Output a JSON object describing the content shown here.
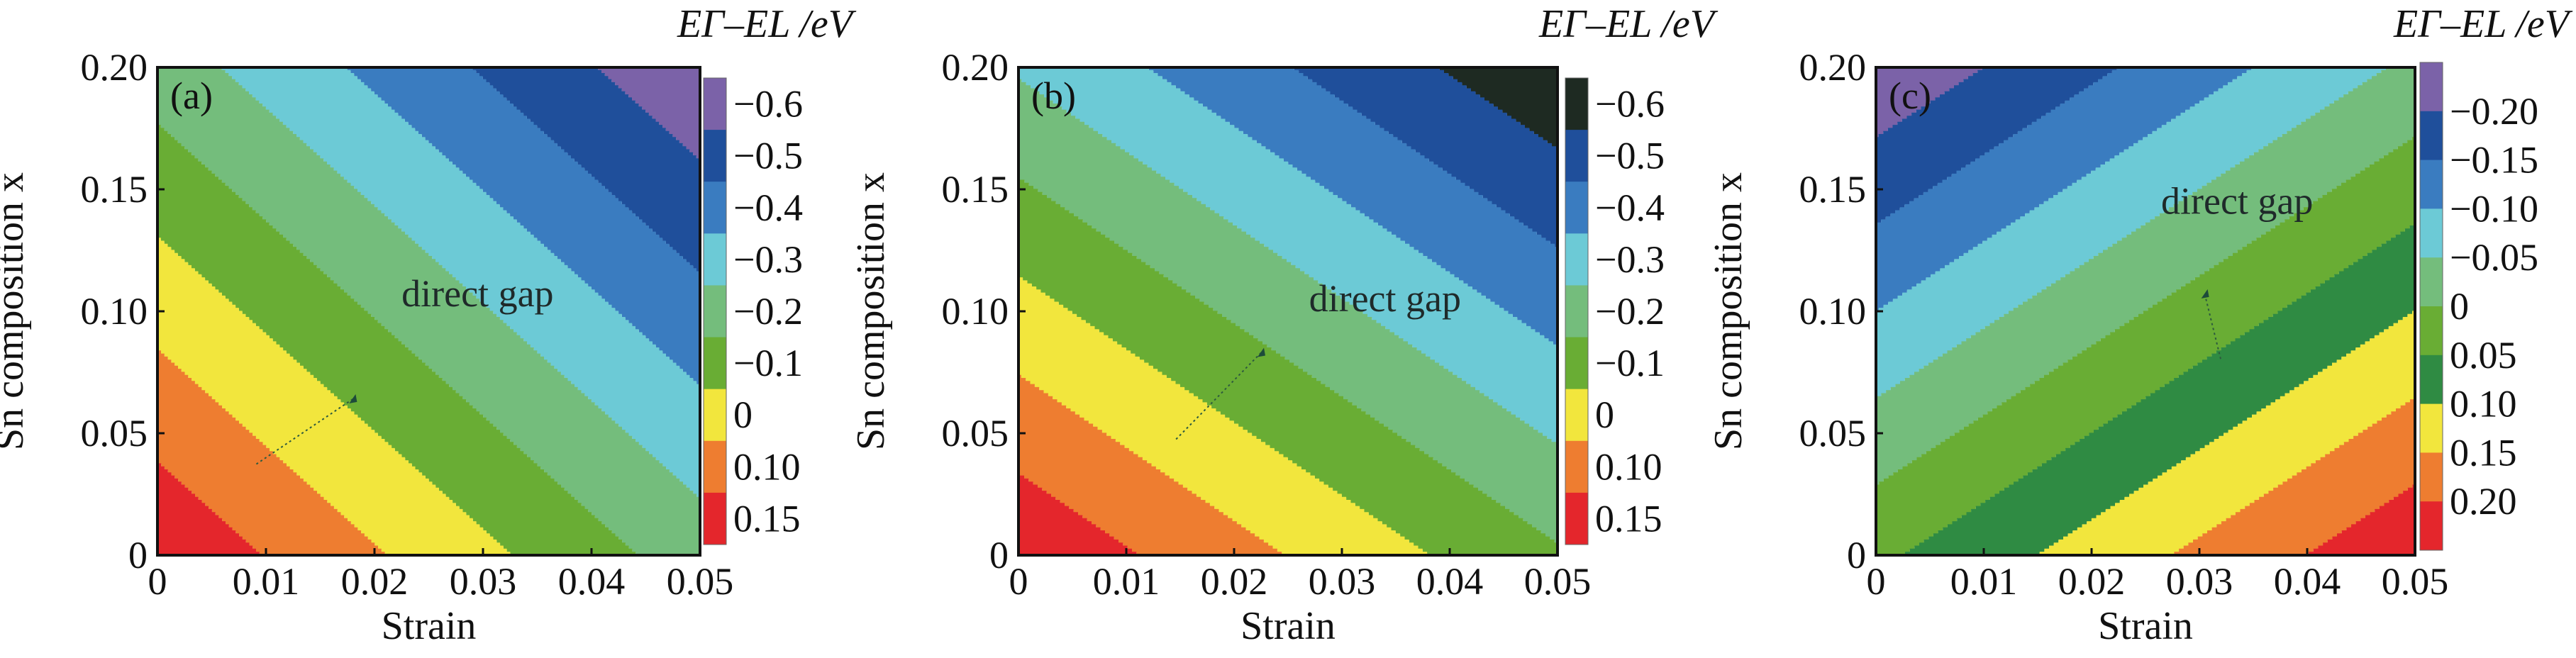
{
  "chart_data": [
    {
      "type": "heatmap",
      "panel_label": "(a)",
      "xlabel": "Strain",
      "ylabel": "Sn composition x",
      "xlim": [
        0,
        0.05
      ],
      "ylim": [
        0,
        0.2
      ],
      "x_ticks": [
        "0",
        "0.01",
        "0.02",
        "0.03",
        "0.04",
        "0.05"
      ],
      "y_ticks": [
        "0",
        "0.05",
        "0.10",
        "0.15",
        "0.20"
      ],
      "colorbar_title": "EΓ–EL /eV",
      "colorbar_labels": [
        "−0.6",
        "−0.5",
        "−0.4",
        "−0.3",
        "−0.2",
        "−0.1",
        "0",
        "0.10",
        "0.15"
      ],
      "colorbar_colors": [
        "#7b62a8",
        "#1f4f9b",
        "#3a7cc0",
        "#6ccad6",
        "#74bd7c",
        "#69ad34",
        "#f2e63d",
        "#ee7d30",
        "#e4262c"
      ],
      "field": {
        "ax": -4.0,
        "ay": -1.0,
        "c": 0.0
      },
      "annotation": {
        "text": "direct gap",
        "x": 0.0295,
        "y": 0.102,
        "point": [
          0.018,
          0.064
        ],
        "line_to": [
          0.009,
          0.037
        ]
      }
    },
    {
      "type": "heatmap",
      "panel_label": "(b)",
      "xlabel": "Strain",
      "ylabel": "Sn composition x",
      "xlim": [
        0,
        0.05
      ],
      "ylim": [
        0,
        0.2
      ],
      "x_ticks": [
        "0",
        "0.01",
        "0.02",
        "0.03",
        "0.04",
        "0.05"
      ],
      "y_ticks": [
        "0",
        "0.05",
        "0.10",
        "0.15",
        "0.20"
      ],
      "colorbar_title": "EΓ–EL /eV",
      "colorbar_labels": [
        "−0.6",
        "−0.5",
        "−0.4",
        "−0.3",
        "−0.2",
        "−0.1",
        "0",
        "0.10",
        "0.15"
      ],
      "colorbar_colors": [
        "#1e2a22",
        "#1f4f9b",
        "#3a7cc0",
        "#6ccad6",
        "#74bd7c",
        "#69ad34",
        "#f2e63d",
        "#ee7d30",
        "#e4262c"
      ],
      "field": {
        "ax": -3.0,
        "ay": -1.0,
        "c": 0.0
      },
      "annotation": {
        "text": "direct gap",
        "x": 0.034,
        "y": 0.1,
        "point": [
          0.0225,
          0.083
        ],
        "line_to": [
          0.0145,
          0.047
        ]
      }
    },
    {
      "type": "heatmap",
      "panel_label": "(c)",
      "xlabel": "Strain",
      "ylabel": "Sn composition x",
      "xlim": [
        0,
        0.05
      ],
      "ylim": [
        0,
        0.2
      ],
      "x_ticks": [
        "0",
        "0.01",
        "0.02",
        "0.03",
        "0.04",
        "0.05"
      ],
      "y_ticks": [
        "0",
        "0.05",
        "0.10",
        "0.15",
        "0.20"
      ],
      "colorbar_title": "EΓ–EL /eV",
      "colorbar_labels": [
        "−0.20",
        "−0.15",
        "−0.10",
        "−0.05",
        "0",
        "0.05",
        "0.10",
        "0.15",
        "0.20"
      ],
      "colorbar_colors": [
        "#7b62a8",
        "#1f4f9b",
        "#3a7cc0",
        "#6ccad6",
        "#74bd7c",
        "#69ad34",
        "#2f8b43",
        "#f2e63d",
        "#ee7d30",
        "#e4262c"
      ],
      "field": {
        "ax": 0.6,
        "ay": -0.21,
        "c": 0.02
      },
      "annotation": {
        "text": "direct gap",
        "x": 0.0335,
        "y": 0.14,
        "point": [
          0.0305,
          0.107
        ],
        "line_to": [
          0.032,
          0.08
        ]
      }
    }
  ]
}
